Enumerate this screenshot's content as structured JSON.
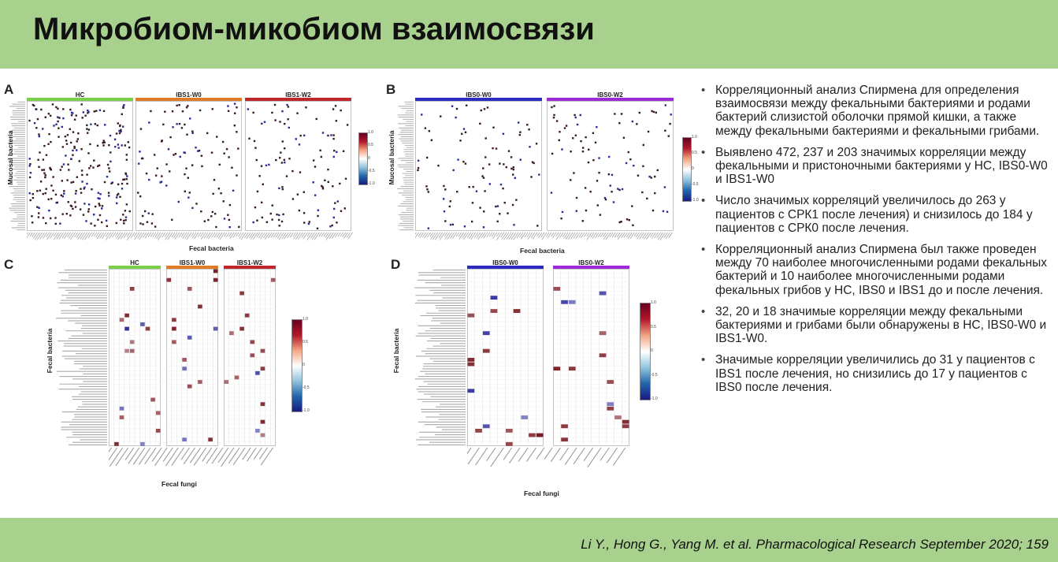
{
  "slide": {
    "title": "Микробиом-микобиом взаимосвязи",
    "citation": "Li Y., Hong G., Yang M. et al. Pharmacological Research September 2020; 159"
  },
  "colors": {
    "header_bg": "#a9d18e",
    "hc": "#7ccf4a",
    "ibs1_w0": "#e07b2a",
    "ibs1_w2": "#c0262c",
    "ibs0_w0": "#2b2bbf",
    "ibs0_w2": "#9a2bd6",
    "positive": "#7a1a22",
    "negative": "#2a2a9a"
  },
  "figure": {
    "panels": [
      {
        "letter": "A",
        "y_label": "Mucosal bacteria",
        "x_label": "Fecal bacteria",
        "groups": [
          "HC",
          "IBS1-W0",
          "IBS1-W2"
        ],
        "legend_ticks": [
          "1.0",
          "0.5",
          "0",
          "-0.5",
          "-1.0"
        ]
      },
      {
        "letter": "B",
        "y_label": "Mucosal bacteria",
        "x_label": "Fecal bacteria",
        "groups": [
          "IBS0-W0",
          "IBS0-W2"
        ],
        "legend_ticks": [
          "1.0",
          "0.5",
          "0",
          "-0.5",
          "-1.0"
        ]
      },
      {
        "letter": "C",
        "y_label": "Fecal bacteria",
        "x_label": "Fecal fungi",
        "groups": [
          "HC",
          "IBS1-W0",
          "IBS1-W2"
        ],
        "legend_ticks": [
          "1.0",
          "0.5",
          "0",
          "-0.5",
          "-1.0"
        ]
      },
      {
        "letter": "D",
        "y_label": "Fecal bacteria",
        "x_label": "Fecal fungi",
        "groups": [
          "IBS0-W0",
          "IBS0-W2"
        ],
        "legend_ticks": [
          "1.0",
          "0.5",
          "0",
          "-0.5",
          "-1.0"
        ]
      }
    ]
  },
  "bullets": [
    "Корреляционный анализ Спирмена для определения взаимосвязи между фекальными бактериями и родами бактерий слизистой оболочки прямой кишки, а также между фекальными бактериями и фекальными грибами.",
    "Выявлено 472, 237 и 203 значимых корреляции между фекальными и пристоночными бактериями у HC, IBS0-W0 и IBS1-W0",
    "Число значимых корреляций увеличилось до 263 у пациентов с СРК1 после лечения) и снизилось до 184 у пациентов с СРК0 после лечения.",
    "Корреляционный анализ Спирмена был также проведен между 70 наиболее многочисленными родами фекальных бактерий и 10 наиболее многочисленными родами фекальных грибов у HC, IBS0 и IBS1 до и после лечения.",
    "32, 20 и 18 значимые корреляции между фекальными бактериями и грибами были обнаружены в HC, IBS0-W0 и IBS1-W0.",
    "Значимые корреляции увеличились до 31 у пациентов с IBS1 после лечения, но снизились до 17 у пациентов с IBS0 после лечения."
  ]
}
